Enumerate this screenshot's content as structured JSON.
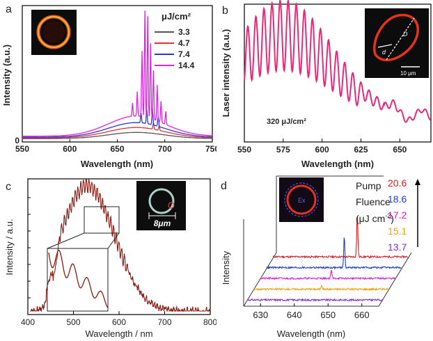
{
  "chart_data": [
    {
      "panel_label": "a",
      "type": "line",
      "xlabel": "Wavelength (nm)",
      "ylabel": "Intensity (a.u.)",
      "xlim": [
        550,
        750
      ],
      "x_ticks": [
        "550",
        "600",
        "650",
        "700",
        "750"
      ],
      "y_ticks": [
        "0"
      ],
      "legend_title": "μJ/cm²",
      "legend_position": "top-right",
      "inset": "ring-microscope-image",
      "series": [
        {
          "name": "3.3",
          "color": "#555555",
          "base": 0.45,
          "peaks": []
        },
        {
          "name": "4.7",
          "color": "#e8312f",
          "base": 0.75,
          "peaks": [
            {
              "x": 688,
              "h": 0.4
            },
            {
              "x": 694,
              "h": 0.3
            }
          ]
        },
        {
          "name": "7.4",
          "color": "#2b35d8",
          "base": 1.05,
          "peaks": [
            {
              "x": 675,
              "h": 0.6
            },
            {
              "x": 681,
              "h": 0.9
            },
            {
              "x": 687,
              "h": 1.0
            },
            {
              "x": 693,
              "h": 0.6
            }
          ]
        },
        {
          "name": "14.4",
          "color": "#e022e8",
          "base": 1.45,
          "peaks": [
            {
              "x": 666,
              "h": 0.8
            },
            {
              "x": 671,
              "h": 1.5
            },
            {
              "x": 676,
              "h": 4.0
            },
            {
              "x": 679,
              "h": 6.5
            },
            {
              "x": 682,
              "h": 6.2
            },
            {
              "x": 685,
              "h": 4.6
            },
            {
              "x": 688,
              "h": 3.0
            },
            {
              "x": 692,
              "h": 2.2
            },
            {
              "x": 696,
              "h": 1.3
            },
            {
              "x": 701,
              "h": 0.8
            }
          ]
        }
      ]
    },
    {
      "panel_label": "b",
      "type": "line",
      "xlabel": "Wavelength (nm)",
      "ylabel": "Laser intensity (a.u.)",
      "xlim": [
        550,
        670
      ],
      "x_ticks": [
        "550",
        "575",
        "600",
        "625",
        "650"
      ],
      "annotation": "320 μJ/cm²",
      "inset_scale": "10 μm",
      "inset_labels": [
        "D",
        "d"
      ],
      "series": [
        {
          "name": "",
          "color": "#e8297a",
          "envelope_peak_x": 575,
          "mode_spacing_nm": 5.2
        }
      ]
    },
    {
      "panel_label": "c",
      "type": "line",
      "xlabel": "Wavelength / nm",
      "ylabel": "Intensity / a.u.",
      "xlim": [
        400,
        800
      ],
      "x_ticks": [
        "400",
        "500",
        "600",
        "700",
        "800"
      ],
      "inset_scale": "8μm",
      "series": [
        {
          "name": "",
          "color": "#8b1a10",
          "envelope_peak_x": 530
        }
      ]
    },
    {
      "panel_label": "d",
      "type": "line",
      "xlabel": "Wavelength (nm)",
      "ylabel": "Intensity",
      "xlim": [
        625,
        665
      ],
      "x_ticks": [
        "630",
        "640",
        "650",
        "660"
      ],
      "legend_title": "Pump Fluence (μJ cm⁻²)",
      "legend_title_lines": [
        "Pump",
        "Fluence",
        "(μJ cm"
      ],
      "legend_superscript": "-2",
      "inset_label": "Ex",
      "series": [
        {
          "name": "20.6",
          "color": "#e01a1a",
          "peak_x": 650,
          "peak_h": 60
        },
        {
          "name": "18.6",
          "color": "#1a3be0",
          "peak_x": 648,
          "peak_h": 44
        },
        {
          "name": "17.2",
          "color": "#e01ae0",
          "peak_x": 646,
          "peak_h": 12
        },
        {
          "name": "15.1",
          "color": "#f0a010",
          "peak_x": 645,
          "peak_h": 6
        },
        {
          "name": "13.7",
          "color": "#7a2be0",
          "peak_x": 0,
          "peak_h": 0
        }
      ]
    }
  ]
}
